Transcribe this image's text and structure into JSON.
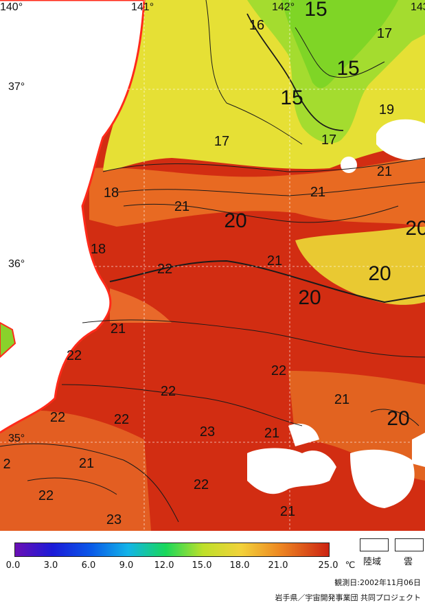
{
  "map": {
    "lat_labels": [
      "37°",
      "36°",
      "35°"
    ],
    "lon_labels": [
      "140°",
      "141°",
      "142°",
      "143°"
    ],
    "isotherm_labels": [
      "15",
      "15",
      "15",
      "16",
      "17",
      "17",
      "17",
      "19",
      "21",
      "21",
      "21",
      "18",
      "18",
      "20",
      "20",
      "20",
      "20",
      "20",
      "21",
      "22",
      "21",
      "22",
      "22",
      "22",
      "22",
      "22",
      "21",
      "23",
      "21",
      "21",
      "2",
      "22",
      "22",
      "23",
      "21"
    ]
  },
  "legend": {
    "scale_ticks": [
      "0.0",
      "3.0",
      "6.0",
      "9.0",
      "12.0",
      "15.0",
      "18.0",
      "21.0",
      "25.0"
    ],
    "unit": "℃",
    "scale_min": 0.0,
    "scale_max": 25.0,
    "land_label": "陸域",
    "cloud_label": "雲"
  },
  "observation_date": "観測日:2002年11月06日",
  "credit": "岩手県／宇宙開発事業団 共同プロジェクト",
  "colors": {
    "coast": "#ff2a1a",
    "warm": "#d52a10",
    "mid": "#e8601a",
    "yellow": "#e8e233",
    "green": "#8cd827"
  }
}
